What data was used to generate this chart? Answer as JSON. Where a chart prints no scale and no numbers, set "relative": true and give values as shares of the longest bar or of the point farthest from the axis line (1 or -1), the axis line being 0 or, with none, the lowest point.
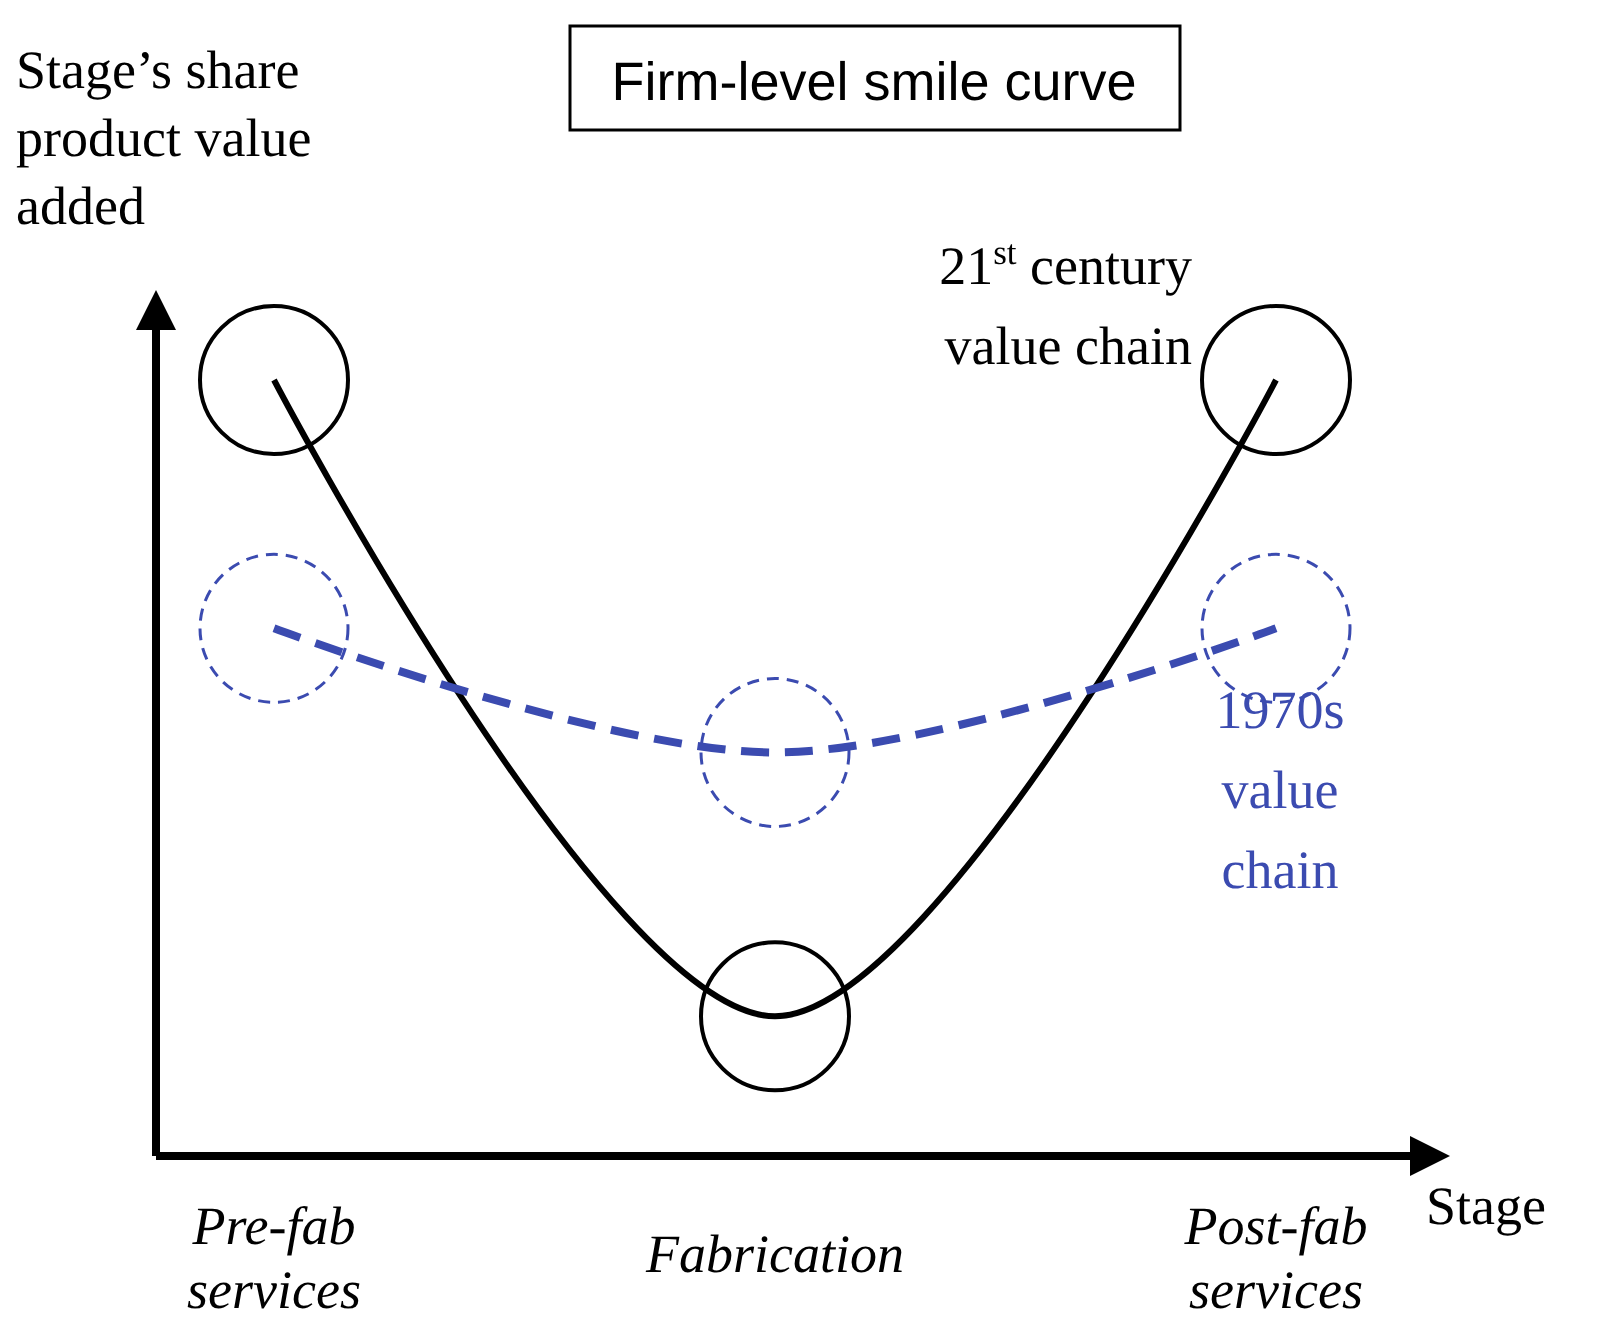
{
  "chart_data": {
    "type": "line",
    "title": "Firm-level smile curve",
    "xlabel": "Stage",
    "ylabel": "Stage’s share product value added",
    "relative": true,
    "categories": [
      "Pre-fab services",
      "Fabrication",
      "Post-fab services"
    ],
    "series": [
      {
        "name": "21$^{st}$ century value chain",
        "color": "#000000",
        "line_style": "solid",
        "values": [
          1,
          0.18,
          1
        ]
      },
      {
        "name": "1970s value chain",
        "color": "#3b4bb0",
        "line_style": "dashed",
        "values": [
          0.68,
          0.52,
          0.68
        ]
      }
    ]
  }
}
